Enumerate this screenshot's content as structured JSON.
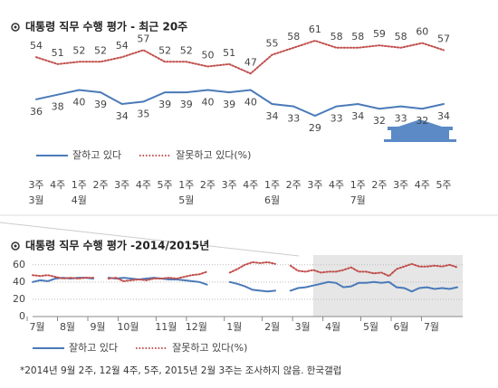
{
  "chart_data": [
    {
      "type": "line",
      "title": "대통령 직무 수행 평가 - 최근 20주",
      "categories": [
        [
          "3주",
          "3월"
        ],
        [
          "4주"
        ],
        [
          "1주",
          "4월"
        ],
        [
          "2주"
        ],
        [
          "3주"
        ],
        [
          "4주"
        ],
        [
          "5주"
        ],
        [
          "1주",
          "5월"
        ],
        [
          "2주"
        ],
        [
          "3주"
        ],
        [
          "4주"
        ],
        [
          "1주",
          "6월"
        ],
        [
          "2주"
        ],
        [
          "3주"
        ],
        [
          "4주"
        ],
        [
          "1주",
          "7월"
        ],
        [
          "2주"
        ],
        [
          "3주"
        ],
        [
          "4주"
        ],
        [
          "5주"
        ]
      ],
      "series": [
        {
          "name": "잘하고 있다",
          "color": "#4a7ab8",
          "style": "solid",
          "values": [
            36,
            38,
            40,
            39,
            34,
            35,
            39,
            39,
            40,
            39,
            40,
            34,
            33,
            29,
            33,
            34,
            32,
            33,
            32,
            34
          ]
        },
        {
          "name": "잘못하고 있다(%)",
          "color": "#c0504d",
          "style": "dotted",
          "values": [
            54,
            51,
            52,
            52,
            54,
            57,
            52,
            52,
            50,
            51,
            47,
            55,
            58,
            61,
            58,
            58,
            59,
            58,
            60,
            57
          ]
        }
      ]
    },
    {
      "type": "line",
      "title": "대통령 직무 수행 평가 -2014/2015년",
      "categories": [
        "7월",
        null,
        null,
        null,
        "8월",
        null,
        null,
        null,
        "9월",
        null,
        null,
        null,
        "10월",
        null,
        null,
        null,
        null,
        "11월",
        null,
        null,
        null,
        "12월",
        null,
        null,
        null,
        null,
        "1월",
        null,
        null,
        null,
        null,
        "2월",
        null,
        null,
        null,
        "3월",
        null,
        null,
        null,
        "4월",
        null,
        null,
        null,
        null,
        "5월",
        null,
        null,
        null,
        "6월",
        null,
        null,
        null,
        "7월",
        null,
        null,
        null,
        null
      ],
      "ylim": [
        0,
        65
      ],
      "yticks": [
        0,
        20,
        40,
        60
      ],
      "grid": true,
      "series": [
        {
          "name": "잘하고 있다",
          "color": "#4a7ab8",
          "style": "solid",
          "values": [
            40,
            42,
            41,
            44,
            45,
            44,
            45,
            45,
            44,
            null,
            45,
            44,
            45,
            44,
            43,
            44,
            45,
            44,
            43,
            43,
            42,
            41,
            40,
            37,
            null,
            null,
            40,
            38,
            35,
            31,
            30,
            29,
            30,
            null,
            30,
            33,
            34,
            36,
            38,
            40,
            39,
            34,
            35,
            39,
            39,
            40,
            39,
            40,
            34,
            33,
            29,
            33,
            34,
            32,
            33,
            32,
            34
          ]
        },
        {
          "name": "잘못하고 있다(%)",
          "color": "#c0504d",
          "style": "dotted",
          "values": [
            48,
            47,
            48,
            46,
            44,
            45,
            44,
            45,
            45,
            null,
            44,
            45,
            41,
            42,
            43,
            42,
            44,
            44,
            45,
            44,
            46,
            48,
            49,
            52,
            null,
            null,
            51,
            55,
            60,
            63,
            62,
            63,
            61,
            null,
            59,
            53,
            52,
            54,
            51,
            52,
            52,
            54,
            57,
            52,
            52,
            50,
            51,
            47,
            55,
            58,
            61,
            58,
            58,
            59,
            58,
            60,
            57
          ]
        }
      ]
    }
  ],
  "footnote": "*2014년 9월 2주, 12월 4주, 5주, 2015년 2월 3주는 조사하지 않음. 한국갤럽"
}
